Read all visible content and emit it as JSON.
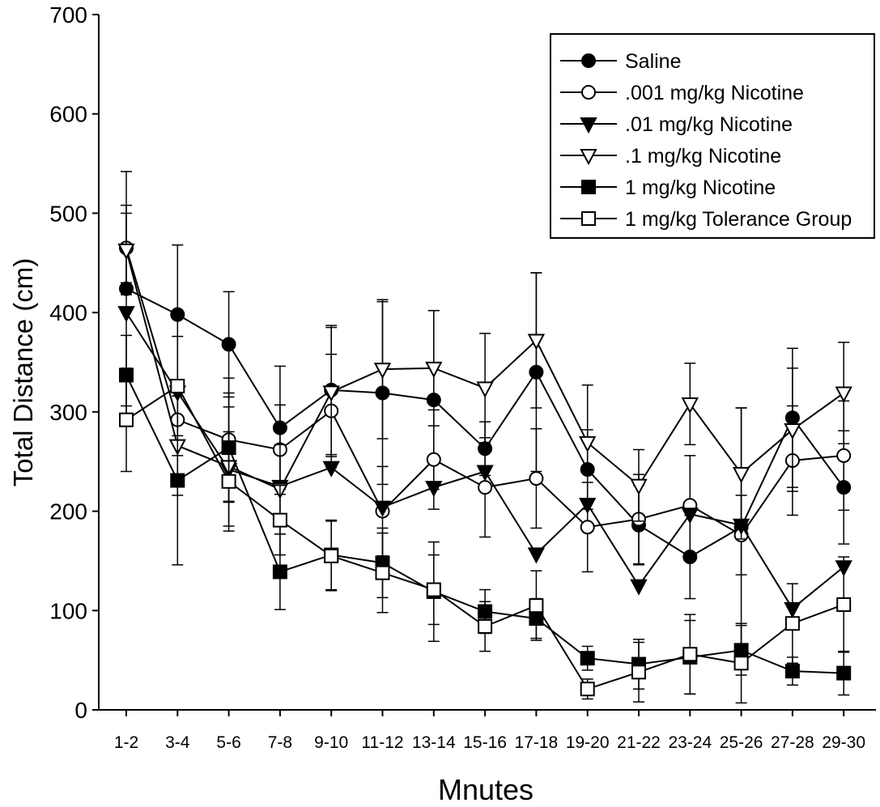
{
  "chart_data": {
    "type": "line",
    "title": "",
    "xlabel": "Mnutes",
    "ylabel": "Total Distance (cm)",
    "ylim": [
      0,
      700
    ],
    "yticks": [
      0,
      100,
      200,
      300,
      400,
      500,
      600,
      700
    ],
    "categories": [
      "1-2",
      "3-4",
      "5-6",
      "7-8",
      "9-10",
      "11-12",
      "13-14",
      "15-16",
      "17-18",
      "19-20",
      "21-22",
      "23-24",
      "25-26",
      "27-28",
      "29-30"
    ],
    "grid": false,
    "legend_position": "top-right",
    "series": [
      {
        "name": "Saline",
        "marker": "circle",
        "fill": "filled",
        "values": [
          424,
          398,
          368,
          284,
          322,
          319,
          312,
          263,
          340,
          242,
          186,
          154,
          184,
          294,
          224
        ],
        "errors": [
          118,
          70,
          53,
          62,
          65,
          92,
          90,
          27,
          100,
          40,
          40,
          42,
          120,
          70,
          57
        ]
      },
      {
        "name": ".001 mg/kg Nicotine",
        "marker": "circle",
        "fill": "open",
        "values": [
          465,
          292,
          272,
          262,
          301,
          200,
          252,
          224,
          233,
          184,
          192,
          206,
          176,
          251,
          256
        ],
        "errors": [
          35,
          36,
          62,
          45,
          57,
          45,
          50,
          50,
          50,
          45,
          45,
          50,
          40,
          55,
          55
        ]
      },
      {
        "name": ".01 mg/kg Nicotine",
        "marker": "triangle-down",
        "fill": "filled",
        "values": [
          400,
          320,
          242,
          225,
          244,
          204,
          224,
          240,
          157,
          207,
          125,
          197,
          186,
          102,
          144
        ]
      },
      {
        "name": ".1 mg/kg Nicotine",
        "marker": "triangle-down",
        "fill": "open",
        "values": [
          463,
          266,
          245,
          222,
          320,
          343,
          344,
          324,
          372,
          269,
          226,
          308,
          238,
          282,
          319
        ],
        "errors": [
          45,
          50,
          60,
          45,
          65,
          70,
          58,
          55,
          68,
          58,
          36,
          41,
          66,
          62,
          51
        ]
      },
      {
        "name": "1 mg/kg Nicotine",
        "marker": "square",
        "fill": "filled",
        "values": [
          337,
          231,
          264,
          139,
          156,
          148,
          119,
          99,
          92,
          52,
          46,
          53,
          60,
          39,
          37
        ],
        "errors": [
          40,
          85,
          55,
          38,
          35,
          35,
          50,
          22,
          20,
          12,
          25,
          37,
          25,
          14,
          22
        ]
      },
      {
        "name": "1 mg/kg Tolerance Group",
        "marker": "square",
        "fill": "open",
        "values": [
          292,
          326,
          230,
          191,
          155,
          138,
          121,
          84,
          105,
          21,
          38,
          56,
          47,
          87,
          106
        ],
        "errors": [
          52,
          50,
          50,
          35,
          35,
          40,
          35,
          25,
          35,
          10,
          30,
          40,
          40,
          40,
          48
        ]
      }
    ],
    "legend": [
      "Saline",
      ".001 mg/kg Nicotine",
      ".01 mg/kg Nicotine",
      ".1 mg/kg Nicotine",
      "1 mg/kg Nicotine",
      "1 mg/kg Tolerance Group"
    ]
  }
}
